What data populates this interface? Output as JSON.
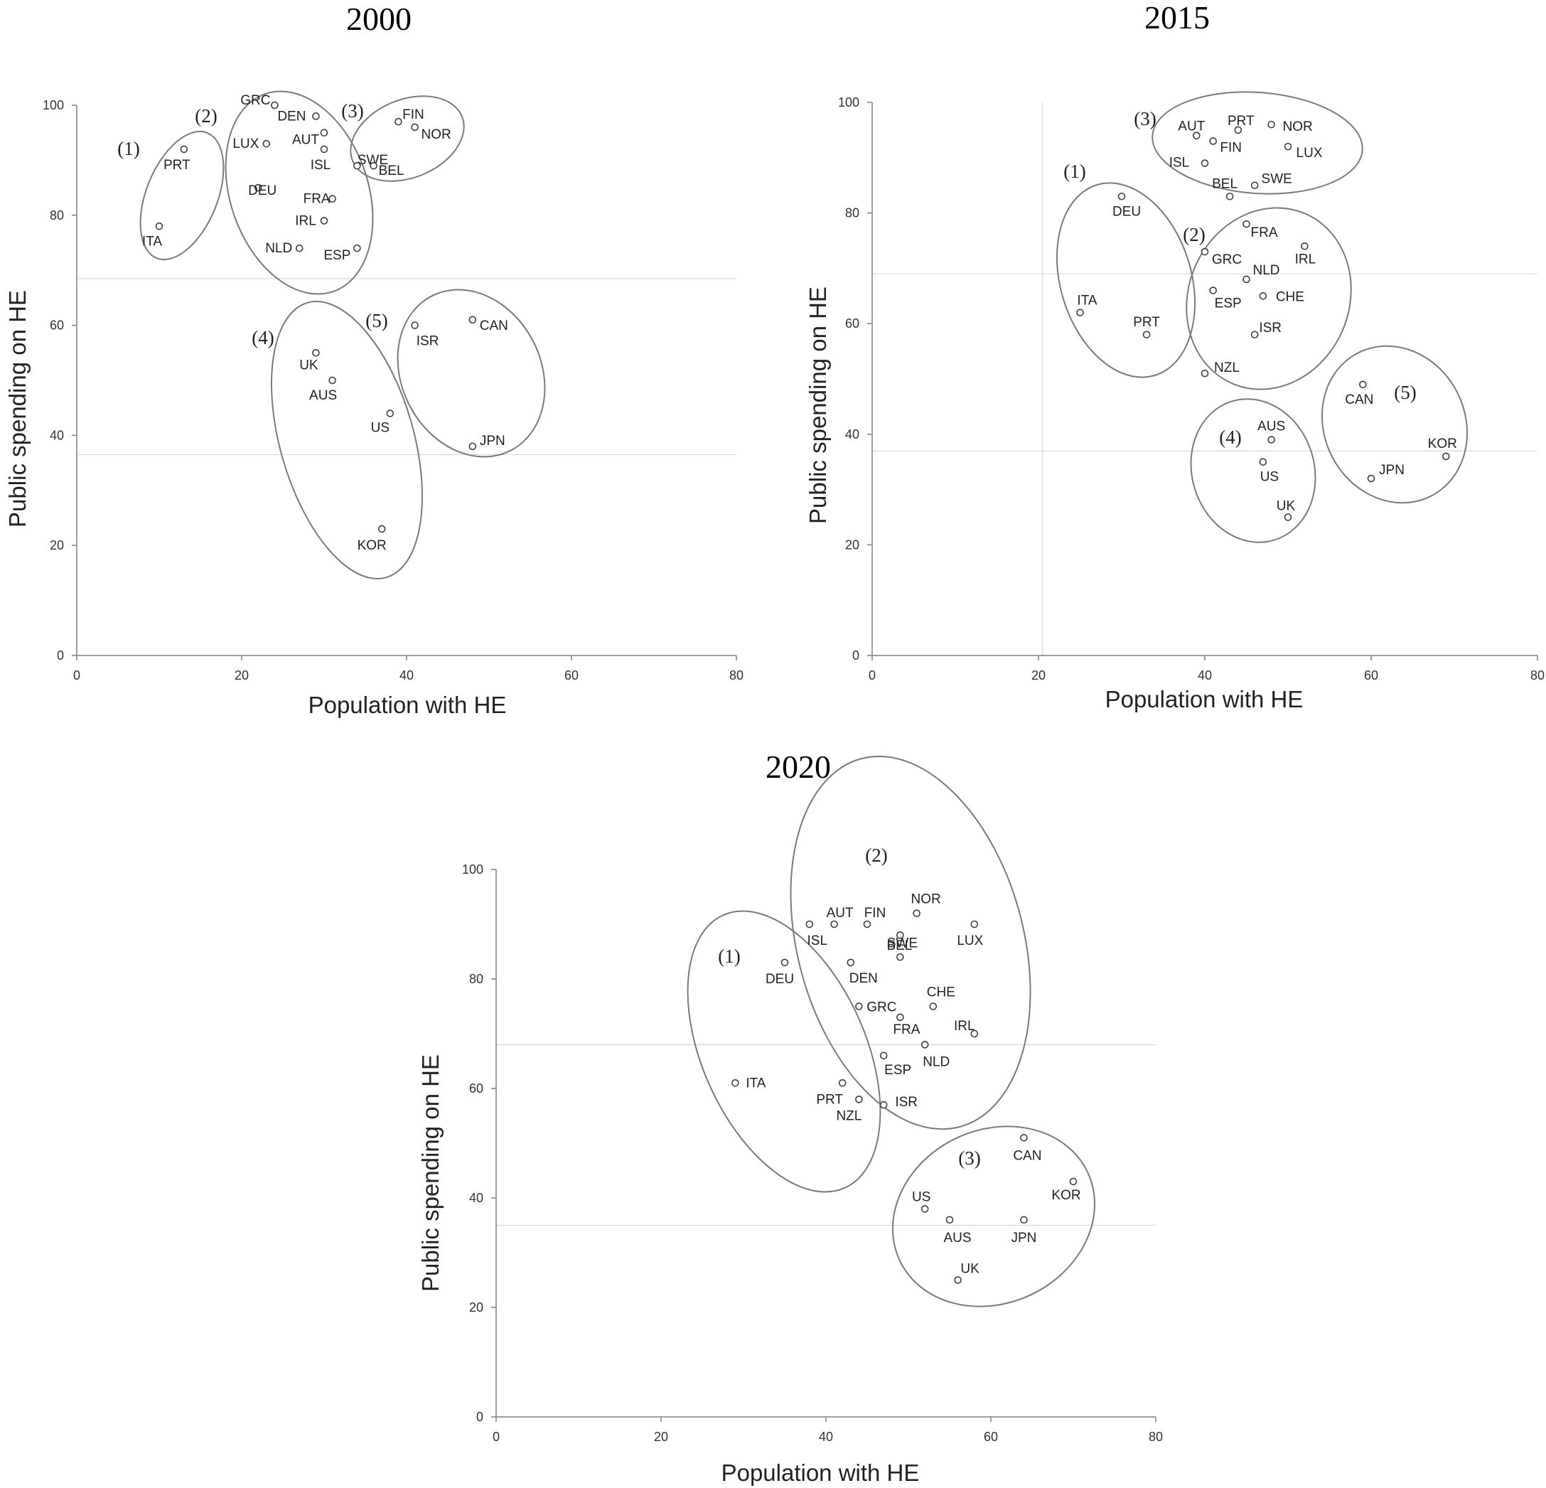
{
  "chart_data": [
    {
      "type": "scatter",
      "title": "2000",
      "xlabel": "Population with HE",
      "ylabel": "Public spending on HE",
      "xlim": [
        0,
        80
      ],
      "ylim": [
        0,
        100
      ],
      "xticks": [
        0,
        20,
        40,
        60,
        80
      ],
      "yticks": [
        0,
        20,
        40,
        60,
        80,
        100
      ],
      "reference_lines": {
        "x": [],
        "y": [
          68.5,
          36.5
        ]
      },
      "points": [
        {
          "label": "PRT",
          "x": 13,
          "y": 92
        },
        {
          "label": "ITA",
          "x": 10,
          "y": 78
        },
        {
          "label": "GRC",
          "x": 24,
          "y": 100
        },
        {
          "label": "DEN",
          "x": 29,
          "y": 98
        },
        {
          "label": "LUX",
          "x": 23,
          "y": 93
        },
        {
          "label": "AUT",
          "x": 30,
          "y": 95
        },
        {
          "label": "ISL",
          "x": 30,
          "y": 92
        },
        {
          "label": "DEU",
          "x": 22,
          "y": 85
        },
        {
          "label": "FRA",
          "x": 31,
          "y": 83
        },
        {
          "label": "IRL",
          "x": 30,
          "y": 79
        },
        {
          "label": "NLD",
          "x": 27,
          "y": 74
        },
        {
          "label": "ESP",
          "x": 34,
          "y": 74
        },
        {
          "label": "FIN",
          "x": 39,
          "y": 97
        },
        {
          "label": "NOR",
          "x": 41,
          "y": 96
        },
        {
          "label": "SWE",
          "x": 34,
          "y": 89
        },
        {
          "label": "BEL",
          "x": 36,
          "y": 89
        },
        {
          "label": "UK",
          "x": 29,
          "y": 55
        },
        {
          "label": "AUS",
          "x": 31,
          "y": 50
        },
        {
          "label": "US",
          "x": 38,
          "y": 44
        },
        {
          "label": "KOR",
          "x": 37,
          "y": 23
        },
        {
          "label": "ISR",
          "x": 41,
          "y": 60
        },
        {
          "label": "CAN",
          "x": 48,
          "y": 61
        },
        {
          "label": "JPN",
          "x": 48,
          "y": 38
        }
      ],
      "clusters": [
        {
          "label": "(1)",
          "members": [
            "PRT",
            "ITA"
          ]
        },
        {
          "label": "(2)",
          "members": [
            "GRC",
            "DEN",
            "LUX",
            "AUT",
            "ISL",
            "DEU",
            "FRA",
            "IRL",
            "NLD",
            "ESP"
          ]
        },
        {
          "label": "(3)",
          "members": [
            "FIN",
            "NOR",
            "SWE",
            "BEL"
          ]
        },
        {
          "label": "(4)",
          "members": [
            "UK",
            "AUS",
            "US",
            "KOR"
          ]
        },
        {
          "label": "(5)",
          "members": [
            "ISR",
            "CAN",
            "JPN"
          ]
        }
      ]
    },
    {
      "type": "scatter",
      "title": "2015",
      "xlabel": "Population with HE",
      "ylabel": "Public spending on HE",
      "xlim": [
        0,
        80
      ],
      "ylim": [
        0,
        100
      ],
      "xticks": [
        0,
        20,
        40,
        60,
        80
      ],
      "yticks": [
        0,
        20,
        40,
        60,
        80,
        100
      ],
      "reference_lines": {
        "x": [
          20.5
        ],
        "y": [
          69,
          37
        ]
      },
      "points": [
        {
          "label": "AUT",
          "x": 39,
          "y": 94
        },
        {
          "label": "PRT",
          "x": 44,
          "y": 95
        },
        {
          "label": "NOR",
          "x": 48,
          "y": 96
        },
        {
          "label": "FIN",
          "x": 41,
          "y": 93
        },
        {
          "label": "LUX",
          "x": 50,
          "y": 92
        },
        {
          "label": "ISL",
          "x": 40,
          "y": 89
        },
        {
          "label": "SWE",
          "x": 46,
          "y": 85
        },
        {
          "label": "BEL",
          "x": 43,
          "y": 83
        },
        {
          "label": "DEU",
          "x": 30,
          "y": 83
        },
        {
          "label": "ITA",
          "x": 25,
          "y": 62
        },
        {
          "label": "PRT",
          "x": 33,
          "y": 58
        },
        {
          "label": "FRA",
          "x": 45,
          "y": 78
        },
        {
          "label": "IRL",
          "x": 52,
          "y": 74
        },
        {
          "label": "GRC",
          "x": 40,
          "y": 73
        },
        {
          "label": "NLD",
          "x": 45,
          "y": 68
        },
        {
          "label": "ESP",
          "x": 41,
          "y": 66
        },
        {
          "label": "CHE",
          "x": 47,
          "y": 65
        },
        {
          "label": "ISR",
          "x": 46,
          "y": 58
        },
        {
          "label": "NZL",
          "x": 40,
          "y": 51
        },
        {
          "label": "AUS",
          "x": 48,
          "y": 39
        },
        {
          "label": "US",
          "x": 47,
          "y": 35
        },
        {
          "label": "UK",
          "x": 50,
          "y": 25
        },
        {
          "label": "CAN",
          "x": 59,
          "y": 49
        },
        {
          "label": "KOR",
          "x": 69,
          "y": 36
        },
        {
          "label": "JPN",
          "x": 60,
          "y": 32
        }
      ],
      "clusters": [
        {
          "label": "(1)",
          "members": [
            "DEU",
            "ITA",
            "PRT"
          ]
        },
        {
          "label": "(2)",
          "members": [
            "FRA",
            "IRL",
            "GRC",
            "NLD",
            "ESP",
            "CHE",
            "ISR",
            "NZL"
          ]
        },
        {
          "label": "(3)",
          "members": [
            "AUT",
            "PRT",
            "NOR",
            "FIN",
            "LUX",
            "ISL",
            "SWE",
            "BEL"
          ]
        },
        {
          "label": "(4)",
          "members": [
            "AUS",
            "US",
            "UK"
          ]
        },
        {
          "label": "(5)",
          "members": [
            "CAN",
            "KOR",
            "JPN"
          ]
        }
      ]
    },
    {
      "type": "scatter",
      "title": "2020",
      "xlabel": "Population with HE",
      "ylabel": "Public spending on HE",
      "xlim": [
        0,
        80
      ],
      "ylim": [
        0,
        100
      ],
      "xticks": [
        0,
        20,
        40,
        60,
        80
      ],
      "yticks": [
        0,
        20,
        40,
        60,
        80,
        100
      ],
      "reference_lines": {
        "x": [],
        "y": [
          68,
          35
        ]
      },
      "points": [
        {
          "label": "ISL",
          "x": 38,
          "y": 90
        },
        {
          "label": "AUT",
          "x": 41,
          "y": 90
        },
        {
          "label": "FIN",
          "x": 45,
          "y": 90
        },
        {
          "label": "NOR",
          "x": 51,
          "y": 92
        },
        {
          "label": "LUX",
          "x": 58,
          "y": 90
        },
        {
          "label": "SWE",
          "x": 49,
          "y": 88
        },
        {
          "label": "BEL",
          "x": 49,
          "y": 84
        },
        {
          "label": "DEN",
          "x": 43,
          "y": 83
        },
        {
          "label": "DEU",
          "x": 35,
          "y": 83
        },
        {
          "label": "GRC",
          "x": 44,
          "y": 75
        },
        {
          "label": "CHE",
          "x": 53,
          "y": 75
        },
        {
          "label": "FRA",
          "x": 49,
          "y": 73
        },
        {
          "label": "IRL",
          "x": 58,
          "y": 70
        },
        {
          "label": "NLD",
          "x": 52,
          "y": 68
        },
        {
          "label": "ESP",
          "x": 47,
          "y": 66
        },
        {
          "label": "ITA",
          "x": 29,
          "y": 61
        },
        {
          "label": "PRT",
          "x": 42,
          "y": 61
        },
        {
          "label": "NZL",
          "x": 44,
          "y": 58
        },
        {
          "label": "ISR",
          "x": 47,
          "y": 57
        },
        {
          "label": "CAN",
          "x": 64,
          "y": 51
        },
        {
          "label": "KOR",
          "x": 70,
          "y": 43
        },
        {
          "label": "US",
          "x": 52,
          "y": 38
        },
        {
          "label": "AUS",
          "x": 55,
          "y": 36
        },
        {
          "label": "JPN",
          "x": 64,
          "y": 36
        },
        {
          "label": "UK",
          "x": 56,
          "y": 25
        }
      ],
      "clusters": [
        {
          "label": "(1)",
          "members": [
            "DEU",
            "ITA",
            "PRT",
            "NZL"
          ]
        },
        {
          "label": "(2)",
          "members": [
            "ISL",
            "AUT",
            "FIN",
            "NOR",
            "LUX",
            "SWE",
            "BEL",
            "DEN",
            "GRC",
            "CHE",
            "FRA",
            "IRL",
            "NLD",
            "ESP",
            "ISR"
          ]
        },
        {
          "label": "(3)",
          "members": [
            "CAN",
            "KOR",
            "US",
            "AUS",
            "JPN",
            "UK"
          ]
        }
      ]
    }
  ]
}
